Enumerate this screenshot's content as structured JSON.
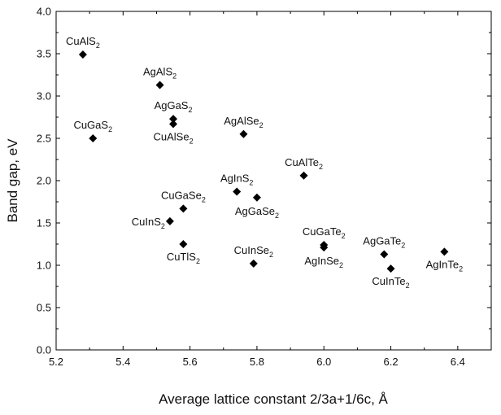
{
  "chart_data": {
    "type": "scatter",
    "xlabel": "Average lattice constant 2/3a+1/6c, Å",
    "ylabel": "Band gap, eV",
    "xlim": [
      5.2,
      6.5
    ],
    "ylim": [
      0.0,
      4.0
    ],
    "xticks": [
      "5.2",
      "5.4",
      "5.6",
      "5.8",
      "6.0",
      "6.2",
      "6.4"
    ],
    "yticks": [
      "0.0",
      "0.5",
      "1.0",
      "1.5",
      "2.0",
      "2.5",
      "3.0",
      "3.5",
      "4.0"
    ],
    "grid": false,
    "marker": "diamond",
    "marker_color": "#000000",
    "points": [
      {
        "label": "CuAlS",
        "sub": "2",
        "x": 5.28,
        "y": 3.49
      },
      {
        "label": "CuGaS",
        "sub": "2",
        "x": 5.31,
        "y": 2.5
      },
      {
        "label": "AgAlS",
        "sub": "2",
        "x": 5.51,
        "y": 3.13
      },
      {
        "label": "AgGaS",
        "sub": "2",
        "x": 5.55,
        "y": 2.73
      },
      {
        "label": "CuAlSe",
        "sub": "2",
        "x": 5.55,
        "y": 2.67
      },
      {
        "label": "AgAlSe",
        "sub": "2",
        "x": 5.76,
        "y": 2.55
      },
      {
        "label": "CuAlTe",
        "sub": "2",
        "x": 5.94,
        "y": 2.06
      },
      {
        "label": "AgInS",
        "sub": "2",
        "x": 5.74,
        "y": 1.87
      },
      {
        "label": "AgGaSe",
        "sub": "2",
        "x": 5.8,
        "y": 1.8
      },
      {
        "label": "CuGaSe",
        "sub": "2",
        "x": 5.58,
        "y": 1.67
      },
      {
        "label": "CuInS",
        "sub": "2",
        "x": 5.54,
        "y": 1.52
      },
      {
        "label": "CuTlS",
        "sub": "2",
        "x": 5.58,
        "y": 1.25
      },
      {
        "label": "CuInSe",
        "sub": "2",
        "x": 5.79,
        "y": 1.02
      },
      {
        "label": "CuGaTe",
        "sub": "2",
        "x": 6.0,
        "y": 1.24
      },
      {
        "label": "AgInSe",
        "sub": "2",
        "x": 6.0,
        "y": 1.21
      },
      {
        "label": "AgGaTe",
        "sub": "2",
        "x": 6.18,
        "y": 1.13
      },
      {
        "label": "CuInTe",
        "sub": "2",
        "x": 6.2,
        "y": 0.96
      },
      {
        "label": "AgInTe",
        "sub": "2",
        "x": 6.36,
        "y": 1.16
      }
    ]
  }
}
